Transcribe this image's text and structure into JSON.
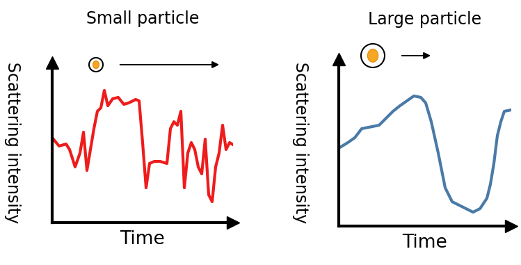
{
  "chart_data": [
    {
      "type": "line",
      "title": "Small particle",
      "xlabel": "Time",
      "ylabel": "Scattering intensity",
      "x": [
        0,
        10,
        20,
        25,
        33,
        40,
        45,
        50,
        55,
        60,
        65,
        70,
        75,
        80,
        87,
        95,
        103,
        110,
        120,
        125,
        130,
        135,
        140,
        147,
        155,
        165,
        170,
        175,
        180,
        185,
        190,
        195,
        200,
        205,
        210,
        215,
        220,
        225,
        230,
        235,
        240,
        245,
        250,
        255,
        260
      ],
      "values": [
        122,
        110,
        113,
        105,
        80,
        100,
        130,
        75,
        105,
        135,
        160,
        165,
        190,
        168,
        178,
        180,
        170,
        172,
        177,
        175,
        115,
        50,
        85,
        88,
        88,
        85,
        135,
        145,
        140,
        160,
        50,
        100,
        115,
        105,
        80,
        70,
        120,
        40,
        30,
        80,
        100,
        140,
        105,
        115,
        112
      ],
      "color": "#ee1c1c",
      "xlim": [
        0,
        260
      ],
      "ylim": [
        0,
        230
      ],
      "xticks": [],
      "yticks": [],
      "tick_labels": false
    },
    {
      "type": "line",
      "title": "Large particle",
      "xlabel": "Time",
      "ylabel": "Scattering intensity",
      "x": [
        0,
        13,
        23,
        33,
        43,
        58,
        68,
        78,
        88,
        98,
        108,
        118,
        125,
        133,
        143,
        153,
        163,
        173,
        183,
        193,
        203,
        213,
        218,
        223,
        228,
        233,
        238,
        248
      ],
      "values": [
        112,
        120,
        127,
        140,
        142,
        145,
        155,
        165,
        173,
        180,
        187,
        185,
        177,
        150,
        105,
        55,
        35,
        30,
        25,
        20,
        25,
        40,
        60,
        90,
        130,
        150,
        165,
        167
      ],
      "color": "#4a7aa7",
      "xlim": [
        0,
        248
      ],
      "ylim": [
        0,
        240
      ],
      "xticks": [],
      "yticks": [],
      "tick_labels": false
    }
  ]
}
